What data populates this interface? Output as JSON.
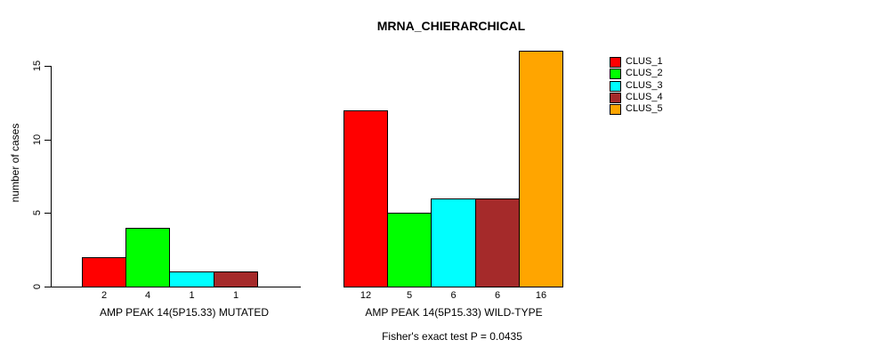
{
  "title": "MRNA_CHIERARCHICAL",
  "footer_note": "Fisher's exact test P = 0.0435",
  "chart_data": {
    "type": "bar",
    "title": "MRNA_CHIERARCHICAL",
    "xlabel": "",
    "ylabel": "number of cases",
    "ylim": [
      0,
      16
    ],
    "yticks": [
      0,
      5,
      10,
      15
    ],
    "grid": false,
    "legend_position": "right",
    "legend": [
      {
        "name": "CLUS_1",
        "color": "#FF0000"
      },
      {
        "name": "CLUS_2",
        "color": "#00FF00"
      },
      {
        "name": "CLUS_3",
        "color": "#00FFFF"
      },
      {
        "name": "CLUS_4",
        "color": "#A52A2A"
      },
      {
        "name": "CLUS_5",
        "color": "#FFA500"
      }
    ],
    "groups": [
      {
        "label": "AMP PEAK 14(5P15.33) MUTATED",
        "series": [
          "CLUS_1",
          "CLUS_2",
          "CLUS_3",
          "CLUS_4",
          "CLUS_5"
        ],
        "values": [
          2,
          4,
          1,
          1,
          0
        ],
        "bar_count_labels": [
          "2",
          "4",
          "1",
          "1",
          ""
        ]
      },
      {
        "label": "AMP PEAK 14(5P15.33) WILD-TYPE",
        "series": [
          "CLUS_1",
          "CLUS_2",
          "CLUS_3",
          "CLUS_4",
          "CLUS_5"
        ],
        "values": [
          12,
          5,
          6,
          6,
          16
        ],
        "bar_count_labels": [
          "12",
          "5",
          "6",
          "6",
          "16"
        ]
      }
    ],
    "annotation": "Fisher's exact test P = 0.0435"
  }
}
